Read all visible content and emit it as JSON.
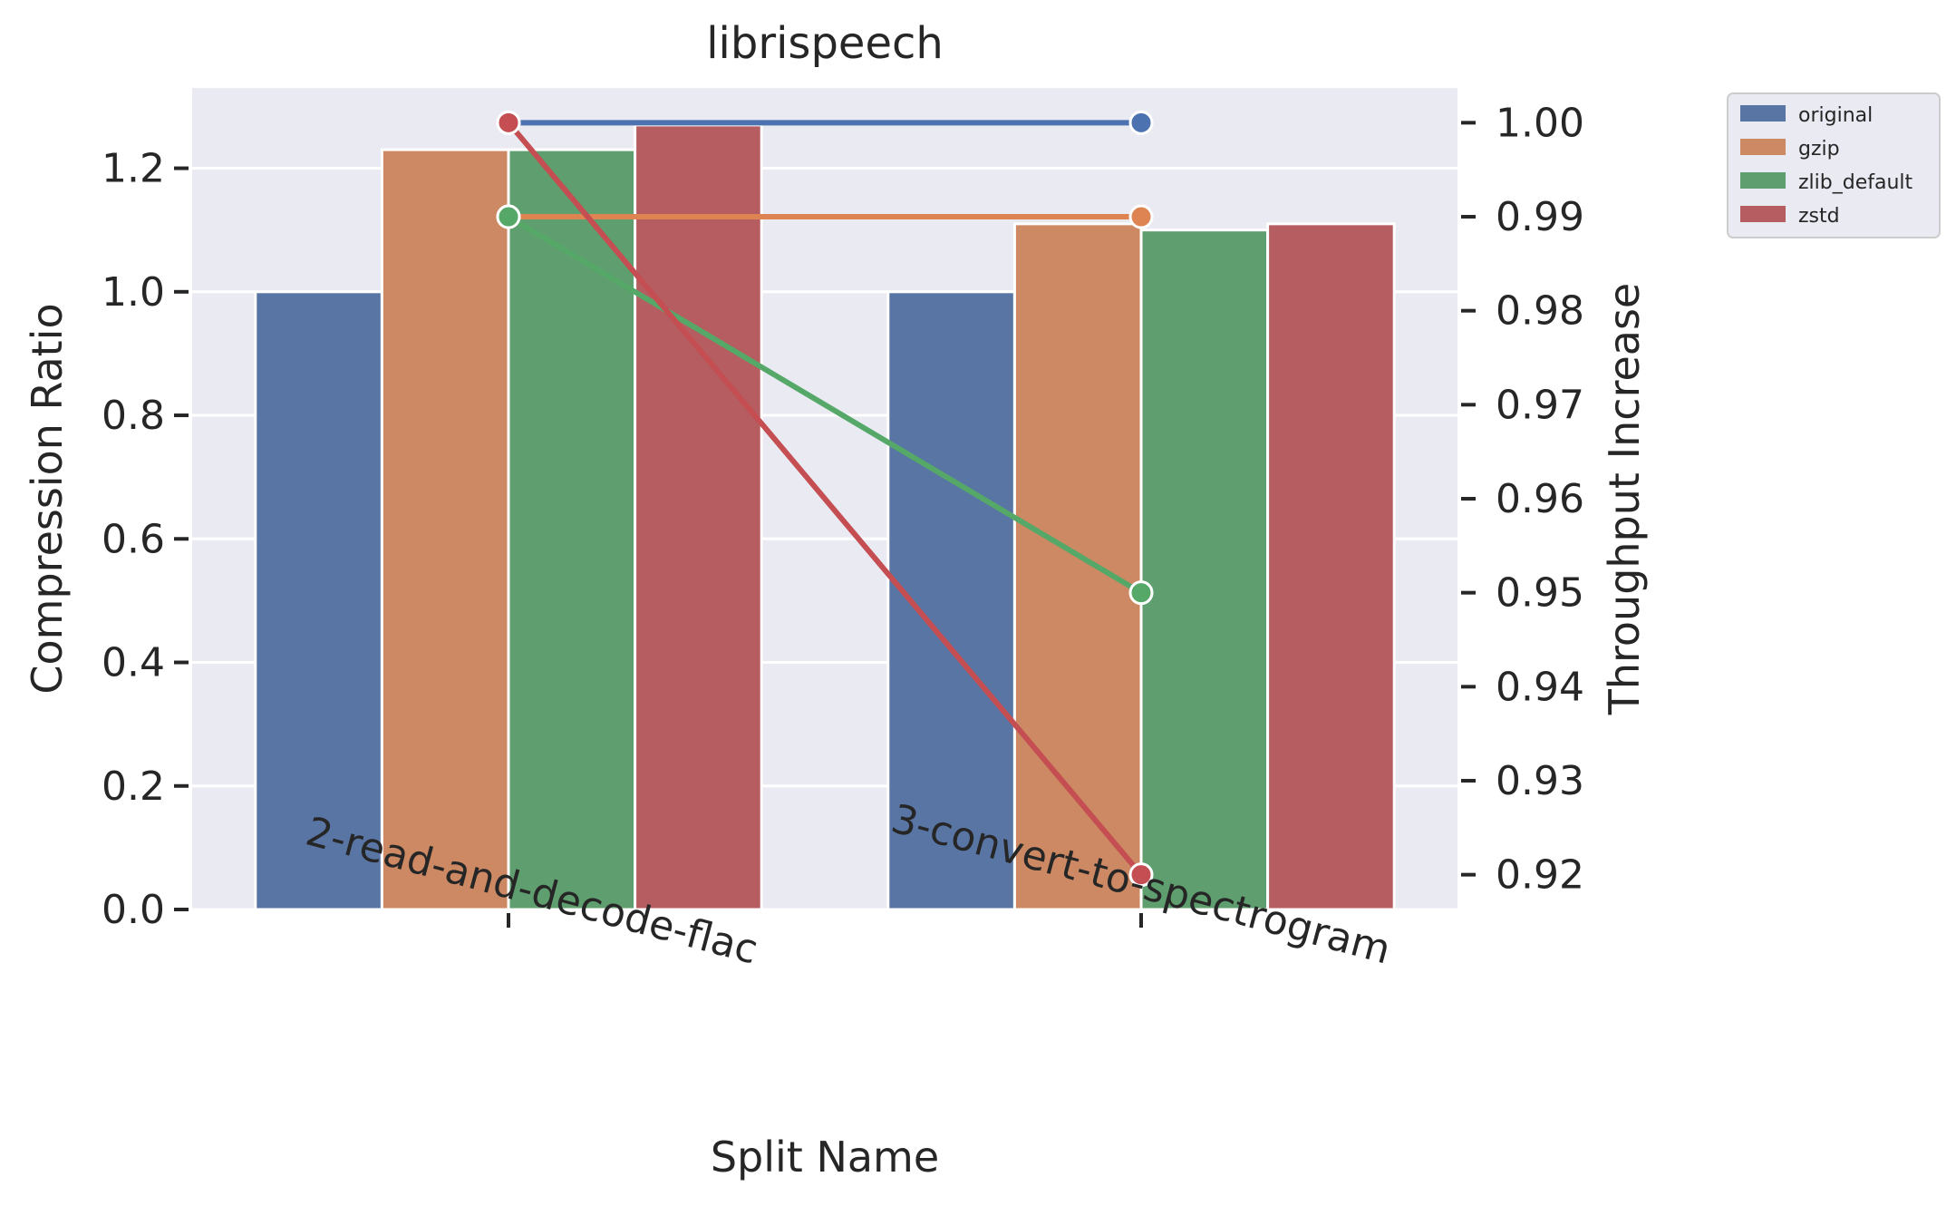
{
  "chart_data": {
    "type": "bar",
    "title": "librispeech",
    "xlabel": "Split Name",
    "ylabel": "Compression Ratio",
    "y2label": "Throughput Increase",
    "categories": [
      "2-read-and-decode-flac",
      "3-convert-to-spectrogram"
    ],
    "ylim": [
      0,
      1.33
    ],
    "yticks": [
      "0.0",
      "0.2",
      "0.4",
      "0.6",
      "0.8",
      "1.0",
      "1.2"
    ],
    "y2lim": [
      0.9163,
      1.0037
    ],
    "y2ticks": [
      "0.92",
      "0.93",
      "0.94",
      "0.95",
      "0.96",
      "0.97",
      "0.98",
      "0.99",
      "1.00"
    ],
    "grid": true,
    "legend_position": "outside-top-right",
    "series": [
      {
        "name": "original",
        "color": "#5975a4",
        "values": [
          1.0,
          1.0
        ],
        "throughput": [
          1.0,
          1.0
        ]
      },
      {
        "name": "gzip",
        "color": "#cc8963",
        "values": [
          1.23,
          1.11
        ],
        "throughput": [
          0.99,
          0.99
        ]
      },
      {
        "name": "zlib_default",
        "color": "#5f9e6e",
        "values": [
          1.23,
          1.1
        ],
        "throughput": [
          0.99,
          0.95
        ]
      },
      {
        "name": "zstd",
        "color": "#b55d60",
        "values": [
          1.27,
          1.11
        ],
        "throughput": [
          1.0,
          0.92
        ]
      }
    ],
    "line_colors": {
      "original": "#4c72b0",
      "gzip": "#dd8452",
      "zlib_default": "#55a868",
      "zstd": "#c44e52"
    }
  }
}
